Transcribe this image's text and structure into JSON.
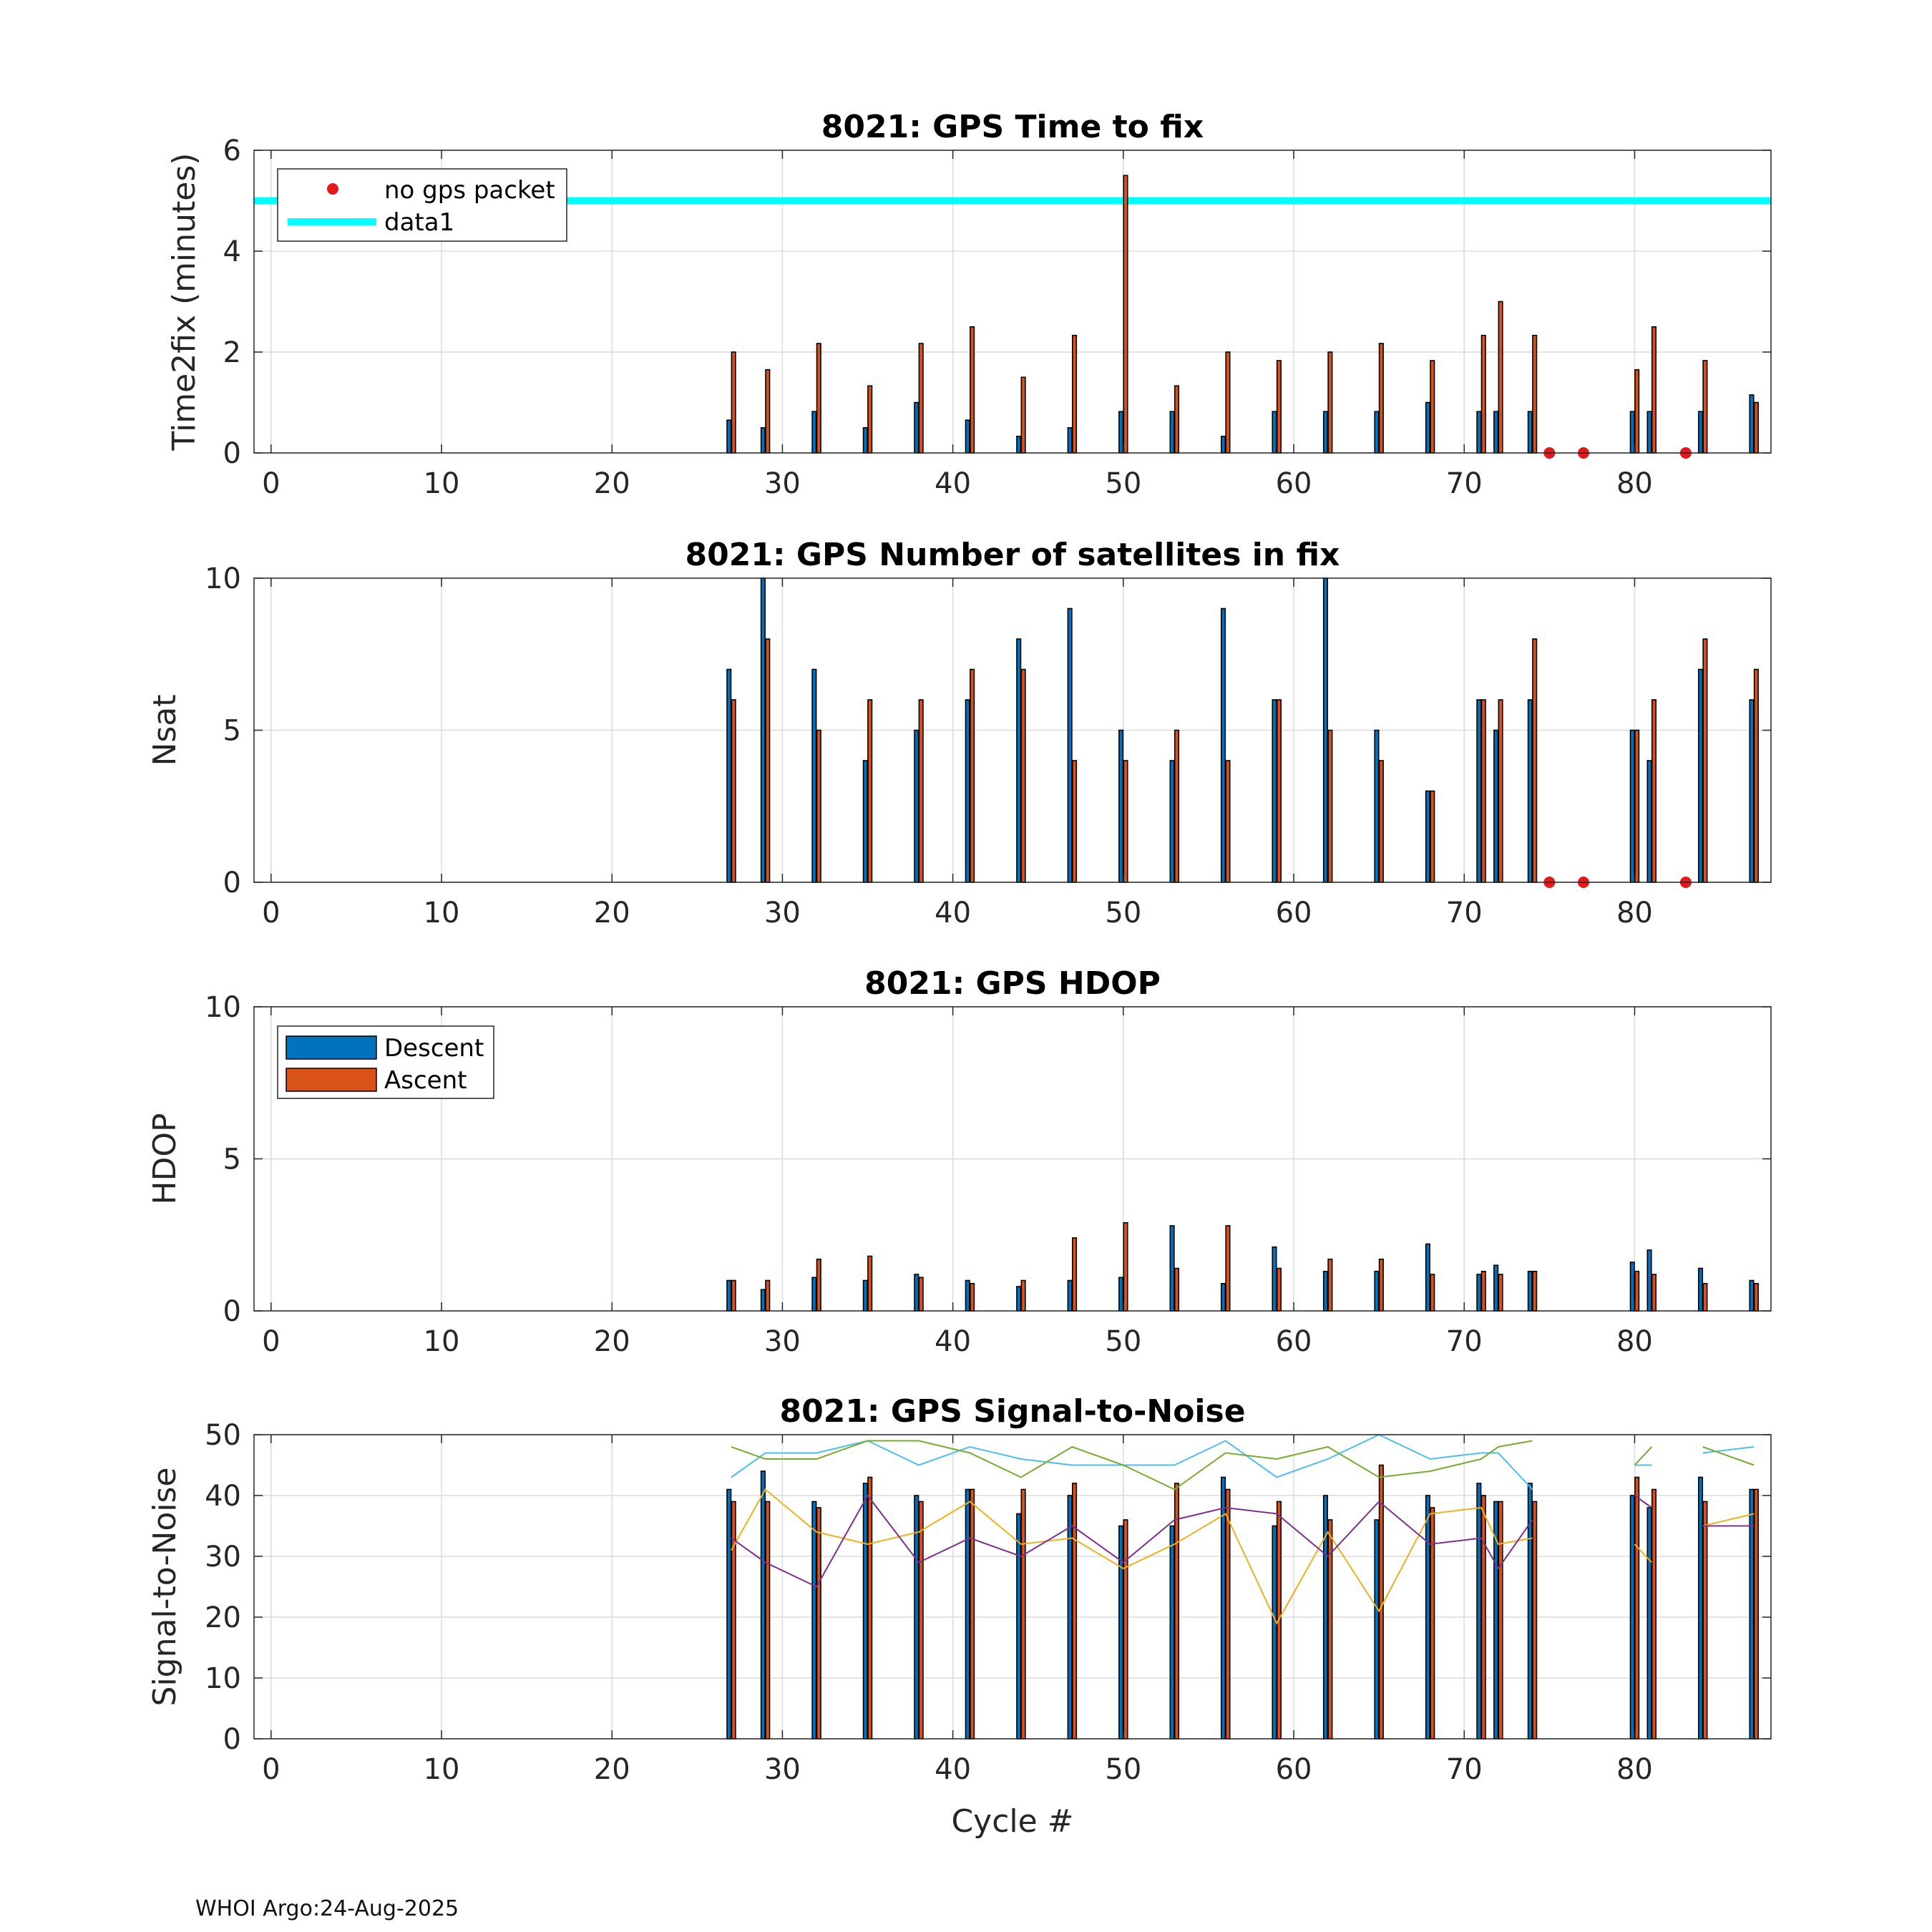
{
  "chart_data": [
    {
      "type": "bar",
      "title": "8021: GPS Time to fix",
      "xlabel": "",
      "ylabel": "Time2fix (minutes)",
      "xlim": [
        -1,
        88
      ],
      "ylim": [
        0,
        6
      ],
      "yticks": [
        0,
        2,
        4,
        6
      ],
      "xticks": [
        0,
        10,
        20,
        30,
        40,
        50,
        60,
        70,
        80
      ],
      "grid": true,
      "legend_position": "top-left",
      "legend": [
        "no gps packet",
        "data1"
      ],
      "cycles": [
        27,
        29,
        32,
        35,
        38,
        41,
        44,
        47,
        50,
        53,
        56,
        59,
        62,
        65,
        68,
        71,
        72,
        74,
        80,
        81,
        84,
        87
      ],
      "series": [
        {
          "name": "Descent",
          "color": "#0072BD",
          "values": [
            0.65,
            0.5,
            0.82,
            0.5,
            1.0,
            0.65,
            0.33,
            0.5,
            0.82,
            0.82,
            0.33,
            0.82,
            0.82,
            0.82,
            1.0,
            0.82,
            0.82,
            0.82,
            0.82,
            0.82,
            0.82,
            1.15
          ]
        },
        {
          "name": "Ascent",
          "color": "#D95319",
          "values": [
            2.0,
            1.65,
            2.17,
            1.33,
            2.17,
            2.5,
            1.5,
            2.33,
            5.5,
            1.33,
            2.0,
            1.83,
            2.0,
            2.17,
            1.83,
            2.33,
            3.0,
            2.33,
            1.65,
            2.5,
            1.83,
            1.0
          ]
        }
      ],
      "no_gps_packet": {
        "x": [
          75,
          77,
          83
        ],
        "y": 0,
        "color": "#e31a1c"
      },
      "reference_line": {
        "name": "data1",
        "y": 5,
        "color": "#00FFFF"
      }
    },
    {
      "type": "bar",
      "title": "8021: GPS Number of satellites in fix",
      "xlabel": "",
      "ylabel": "Nsat",
      "xlim": [
        -1,
        88
      ],
      "ylim": [
        0,
        10
      ],
      "yticks": [
        0,
        5,
        10
      ],
      "xticks": [
        0,
        10,
        20,
        30,
        40,
        50,
        60,
        70,
        80
      ],
      "grid": true,
      "cycles": [
        27,
        29,
        32,
        35,
        38,
        41,
        44,
        47,
        50,
        53,
        56,
        59,
        62,
        65,
        68,
        71,
        72,
        74,
        80,
        81,
        84,
        87
      ],
      "series": [
        {
          "name": "Descent",
          "color": "#0072BD",
          "values": [
            7,
            10,
            7,
            4,
            5,
            6,
            8,
            9,
            5,
            4,
            9,
            6,
            10,
            5,
            3,
            6,
            5,
            6,
            5,
            4,
            7,
            6
          ]
        },
        {
          "name": "Ascent",
          "color": "#D95319",
          "values": [
            6,
            8,
            5,
            6,
            6,
            7,
            7,
            4,
            4,
            5,
            4,
            6,
            5,
            4,
            3,
            6,
            6,
            8,
            5,
            6,
            8,
            7
          ]
        }
      ],
      "no_gps_packet": {
        "x": [
          75,
          77,
          83
        ],
        "y": 0,
        "color": "#e31a1c"
      }
    },
    {
      "type": "bar",
      "title": "8021: GPS HDOP",
      "xlabel": "",
      "ylabel": "HDOP",
      "xlim": [
        -1,
        88
      ],
      "ylim": [
        0,
        10
      ],
      "yticks": [
        0,
        5,
        10
      ],
      "xticks": [
        0,
        10,
        20,
        30,
        40,
        50,
        60,
        70,
        80
      ],
      "grid": true,
      "legend_position": "top-left",
      "legend": [
        "Descent",
        "Ascent"
      ],
      "cycles": [
        27,
        29,
        32,
        35,
        38,
        41,
        44,
        47,
        50,
        53,
        56,
        59,
        62,
        65,
        68,
        71,
        72,
        74,
        80,
        81,
        84,
        87
      ],
      "series": [
        {
          "name": "Descent",
          "color": "#0072BD",
          "values": [
            1.0,
            0.7,
            1.1,
            1.0,
            1.2,
            1.0,
            0.8,
            1.0,
            1.1,
            2.8,
            0.9,
            2.1,
            1.3,
            1.3,
            2.2,
            1.2,
            1.5,
            1.3,
            1.6,
            2.0,
            1.4,
            1.0
          ]
        },
        {
          "name": "Ascent",
          "color": "#D95319",
          "values": [
            1.0,
            1.0,
            1.7,
            1.8,
            1.1,
            0.9,
            1.0,
            2.4,
            2.9,
            1.4,
            2.8,
            1.4,
            1.7,
            1.7,
            1.2,
            1.3,
            1.2,
            1.3,
            1.3,
            1.2,
            0.9,
            0.9
          ]
        }
      ]
    },
    {
      "type": "bar",
      "title": "8021: GPS Signal-to-Noise",
      "xlabel": "Cycle #",
      "ylabel": "Signal-to-Noise",
      "xlim": [
        -1,
        88
      ],
      "ylim": [
        0,
        50
      ],
      "yticks": [
        0,
        10,
        20,
        30,
        40,
        50
      ],
      "xticks": [
        0,
        10,
        20,
        30,
        40,
        50,
        60,
        70,
        80
      ],
      "grid": true,
      "cycles": [
        27,
        29,
        32,
        35,
        38,
        41,
        44,
        47,
        50,
        53,
        56,
        59,
        62,
        65,
        68,
        71,
        72,
        74,
        80,
        81,
        84,
        87
      ],
      "series": [
        {
          "name": "Descent",
          "color": "#0072BD",
          "values": [
            41,
            44,
            39,
            42,
            40,
            41,
            37,
            40,
            35,
            35,
            43,
            35,
            40,
            36,
            40,
            42,
            39,
            42,
            40,
            38,
            43,
            41
          ]
        },
        {
          "name": "Ascent",
          "color": "#D95319",
          "values": [
            39,
            39,
            38,
            43,
            39,
            41,
            41,
            42,
            36,
            42,
            41,
            39,
            36,
            45,
            38,
            40,
            39,
            39,
            43,
            41,
            39,
            41
          ]
        }
      ],
      "lines": [
        {
          "color": "#4DBEEE",
          "points": [
            [
              27,
              43
            ],
            [
              29,
              47
            ],
            [
              32,
              47
            ],
            [
              35,
              49
            ],
            [
              38,
              45
            ],
            [
              41,
              48
            ],
            [
              44,
              46
            ],
            [
              47,
              45
            ],
            [
              50,
              45
            ],
            [
              53,
              45
            ],
            [
              56,
              49
            ],
            [
              59,
              43
            ],
            [
              62,
              46
            ],
            [
              65,
              50
            ],
            [
              68,
              46
            ],
            [
              71,
              47
            ],
            [
              72,
              47
            ],
            [
              74,
              41
            ],
            null,
            [
              80,
              45
            ],
            [
              81,
              45
            ],
            null,
            [
              84,
              47
            ],
            [
              87,
              48
            ]
          ]
        },
        {
          "color": "#77AC30",
          "points": [
            [
              27,
              48
            ],
            [
              29,
              46
            ],
            [
              32,
              46
            ],
            [
              35,
              49
            ],
            [
              38,
              49
            ],
            [
              41,
              47
            ],
            [
              44,
              43
            ],
            [
              47,
              48
            ],
            [
              50,
              45
            ],
            [
              53,
              41
            ],
            [
              56,
              47
            ],
            [
              59,
              46
            ],
            [
              62,
              48
            ],
            [
              65,
              43
            ],
            [
              68,
              44
            ],
            [
              71,
              46
            ],
            [
              72,
              48
            ],
            [
              74,
              49
            ],
            null,
            [
              80,
              45
            ],
            [
              81,
              48
            ],
            null,
            [
              84,
              48
            ],
            [
              87,
              45
            ]
          ]
        },
        {
          "color": "#EDB120",
          "points": [
            [
              27,
              31
            ],
            [
              29,
              41
            ],
            [
              32,
              34
            ],
            [
              35,
              32
            ],
            [
              38,
              34
            ],
            [
              41,
              39
            ],
            [
              44,
              32
            ],
            [
              47,
              33
            ],
            [
              50,
              28
            ],
            [
              53,
              32
            ],
            [
              56,
              37
            ],
            [
              59,
              19
            ],
            [
              62,
              34
            ],
            [
              65,
              21
            ],
            [
              68,
              37
            ],
            [
              71,
              38
            ],
            [
              72,
              32
            ],
            [
              74,
              33
            ],
            null,
            [
              80,
              32
            ],
            [
              81,
              29
            ],
            null,
            [
              84,
              35
            ],
            [
              87,
              37
            ]
          ]
        },
        {
          "color": "#7E2F8E",
          "points": [
            [
              27,
              33
            ],
            [
              29,
              29
            ],
            [
              32,
              25
            ],
            [
              35,
              40
            ],
            [
              38,
              29
            ],
            [
              41,
              33
            ],
            [
              44,
              30
            ],
            [
              47,
              35
            ],
            [
              50,
              29
            ],
            [
              53,
              36
            ],
            [
              56,
              38
            ],
            [
              59,
              37
            ],
            [
              62,
              30
            ],
            [
              65,
              39
            ],
            [
              68,
              32
            ],
            [
              71,
              33
            ],
            [
              72,
              28
            ],
            [
              74,
              36
            ],
            null,
            [
              80,
              40
            ],
            [
              81,
              38
            ],
            null,
            [
              84,
              35
            ],
            [
              87,
              35
            ]
          ]
        }
      ]
    }
  ],
  "footer": "WHOI Argo:24-Aug-2025"
}
